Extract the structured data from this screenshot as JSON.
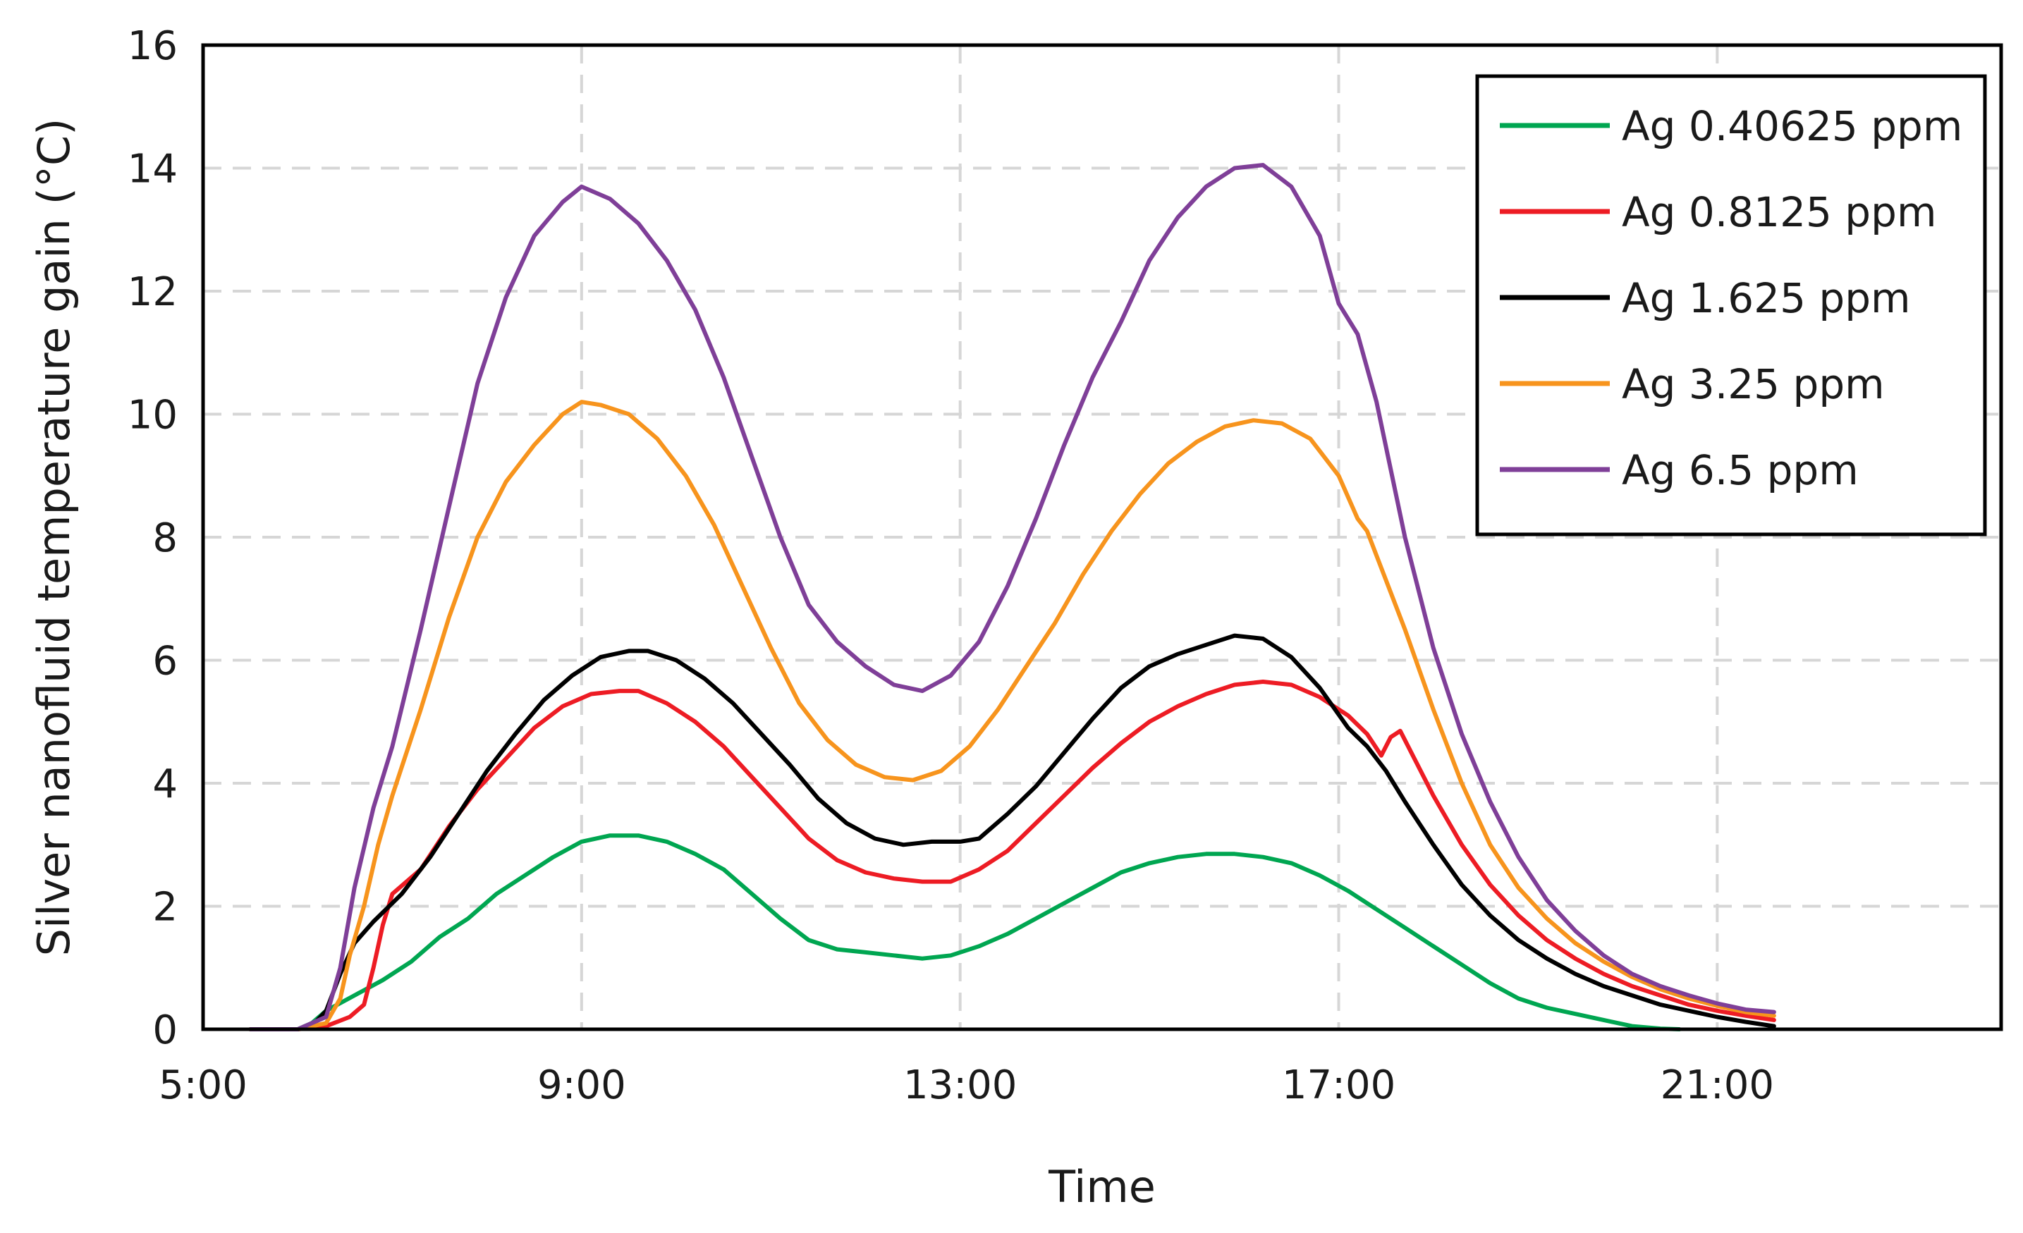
{
  "chart_data": {
    "type": "line",
    "title": "",
    "xlabel": "Time",
    "ylabel": "Silver nanofluid temperature gain (°C)",
    "xlim": [
      5,
      24
    ],
    "ylim": [
      0,
      16
    ],
    "x_ticks": [
      {
        "value": 5,
        "label": "5:00"
      },
      {
        "value": 9,
        "label": "9:00"
      },
      {
        "value": 13,
        "label": "13:00"
      },
      {
        "value": 17,
        "label": "17:00"
      },
      {
        "value": 21,
        "label": "21:00"
      }
    ],
    "x_grid": [
      9,
      13,
      17,
      21
    ],
    "y_ticks": [
      0,
      2,
      4,
      6,
      8,
      10,
      12,
      14,
      16
    ],
    "grid": true,
    "legend_position": "top-right",
    "series": [
      {
        "name": "Ag 0.40625 ppm",
        "color": "#00a651",
        "points": [
          [
            5.5,
            0
          ],
          [
            6.0,
            0
          ],
          [
            6.15,
            0.1
          ],
          [
            6.3,
            0.3
          ],
          [
            6.6,
            0.55
          ],
          [
            6.9,
            0.8
          ],
          [
            7.2,
            1.1
          ],
          [
            7.5,
            1.5
          ],
          [
            7.8,
            1.8
          ],
          [
            8.1,
            2.2
          ],
          [
            8.4,
            2.5
          ],
          [
            8.7,
            2.8
          ],
          [
            9.0,
            3.05
          ],
          [
            9.3,
            3.15
          ],
          [
            9.6,
            3.15
          ],
          [
            9.9,
            3.05
          ],
          [
            10.2,
            2.85
          ],
          [
            10.5,
            2.6
          ],
          [
            10.8,
            2.2
          ],
          [
            11.1,
            1.8
          ],
          [
            11.4,
            1.45
          ],
          [
            11.7,
            1.3
          ],
          [
            12.0,
            1.25
          ],
          [
            12.3,
            1.2
          ],
          [
            12.6,
            1.15
          ],
          [
            12.9,
            1.2
          ],
          [
            13.2,
            1.35
          ],
          [
            13.5,
            1.55
          ],
          [
            13.8,
            1.8
          ],
          [
            14.1,
            2.05
          ],
          [
            14.4,
            2.3
          ],
          [
            14.7,
            2.55
          ],
          [
            15.0,
            2.7
          ],
          [
            15.3,
            2.8
          ],
          [
            15.6,
            2.85
          ],
          [
            15.9,
            2.85
          ],
          [
            16.2,
            2.8
          ],
          [
            16.5,
            2.7
          ],
          [
            16.8,
            2.5
          ],
          [
            17.1,
            2.25
          ],
          [
            17.4,
            1.95
          ],
          [
            17.7,
            1.65
          ],
          [
            18.0,
            1.35
          ],
          [
            18.3,
            1.05
          ],
          [
            18.6,
            0.75
          ],
          [
            18.9,
            0.5
          ],
          [
            19.2,
            0.35
          ],
          [
            19.5,
            0.25
          ],
          [
            19.8,
            0.15
          ],
          [
            20.1,
            0.05
          ],
          [
            20.4,
            0.01
          ],
          [
            20.6,
            0
          ]
        ]
      },
      {
        "name": "Ag 0.8125 ppm",
        "color": "#ed1c24",
        "points": [
          [
            5.5,
            0
          ],
          [
            6.0,
            0
          ],
          [
            6.3,
            0.05
          ],
          [
            6.55,
            0.2
          ],
          [
            6.7,
            0.4
          ],
          [
            6.8,
            1.0
          ],
          [
            6.9,
            1.7
          ],
          [
            7.0,
            2.2
          ],
          [
            7.3,
            2.6
          ],
          [
            7.6,
            3.3
          ],
          [
            7.9,
            3.9
          ],
          [
            8.2,
            4.4
          ],
          [
            8.5,
            4.9
          ],
          [
            8.8,
            5.25
          ],
          [
            9.1,
            5.45
          ],
          [
            9.4,
            5.5
          ],
          [
            9.6,
            5.5
          ],
          [
            9.9,
            5.3
          ],
          [
            10.2,
            5.0
          ],
          [
            10.5,
            4.6
          ],
          [
            10.8,
            4.1
          ],
          [
            11.1,
            3.6
          ],
          [
            11.4,
            3.1
          ],
          [
            11.7,
            2.75
          ],
          [
            12.0,
            2.55
          ],
          [
            12.3,
            2.45
          ],
          [
            12.6,
            2.4
          ],
          [
            12.9,
            2.4
          ],
          [
            13.2,
            2.6
          ],
          [
            13.5,
            2.9
          ],
          [
            13.8,
            3.35
          ],
          [
            14.1,
            3.8
          ],
          [
            14.4,
            4.25
          ],
          [
            14.7,
            4.65
          ],
          [
            15.0,
            5.0
          ],
          [
            15.3,
            5.25
          ],
          [
            15.6,
            5.45
          ],
          [
            15.9,
            5.6
          ],
          [
            16.2,
            5.65
          ],
          [
            16.5,
            5.6
          ],
          [
            16.8,
            5.4
          ],
          [
            17.1,
            5.1
          ],
          [
            17.3,
            4.8
          ],
          [
            17.45,
            4.45
          ],
          [
            17.55,
            4.75
          ],
          [
            17.65,
            4.85
          ],
          [
            17.8,
            4.4
          ],
          [
            18.0,
            3.8
          ],
          [
            18.3,
            3.0
          ],
          [
            18.6,
            2.35
          ],
          [
            18.9,
            1.85
          ],
          [
            19.2,
            1.45
          ],
          [
            19.5,
            1.15
          ],
          [
            19.8,
            0.9
          ],
          [
            20.1,
            0.7
          ],
          [
            20.4,
            0.55
          ],
          [
            20.7,
            0.4
          ],
          [
            21.0,
            0.3
          ],
          [
            21.3,
            0.22
          ],
          [
            21.6,
            0.15
          ]
        ]
      },
      {
        "name": "Ag 1.625 ppm",
        "color": "#000000",
        "points": [
          [
            5.5,
            0
          ],
          [
            6.0,
            0
          ],
          [
            6.15,
            0.05
          ],
          [
            6.3,
            0.3
          ],
          [
            6.45,
            0.9
          ],
          [
            6.6,
            1.4
          ],
          [
            6.8,
            1.75
          ],
          [
            7.1,
            2.2
          ],
          [
            7.4,
            2.8
          ],
          [
            7.7,
            3.5
          ],
          [
            8.0,
            4.2
          ],
          [
            8.3,
            4.8
          ],
          [
            8.6,
            5.35
          ],
          [
            8.9,
            5.75
          ],
          [
            9.2,
            6.05
          ],
          [
            9.5,
            6.15
          ],
          [
            9.7,
            6.15
          ],
          [
            10.0,
            6.0
          ],
          [
            10.3,
            5.7
          ],
          [
            10.6,
            5.3
          ],
          [
            10.9,
            4.8
          ],
          [
            11.2,
            4.3
          ],
          [
            11.5,
            3.75
          ],
          [
            11.8,
            3.35
          ],
          [
            12.1,
            3.1
          ],
          [
            12.4,
            3.0
          ],
          [
            12.7,
            3.05
          ],
          [
            13.0,
            3.05
          ],
          [
            13.2,
            3.1
          ],
          [
            13.5,
            3.5
          ],
          [
            13.8,
            3.95
          ],
          [
            14.1,
            4.5
          ],
          [
            14.4,
            5.05
          ],
          [
            14.7,
            5.55
          ],
          [
            15.0,
            5.9
          ],
          [
            15.3,
            6.1
          ],
          [
            15.6,
            6.25
          ],
          [
            15.9,
            6.4
          ],
          [
            16.2,
            6.35
          ],
          [
            16.5,
            6.05
          ],
          [
            16.8,
            5.55
          ],
          [
            17.1,
            4.9
          ],
          [
            17.3,
            4.6
          ],
          [
            17.5,
            4.2
          ],
          [
            17.7,
            3.7
          ],
          [
            18.0,
            3.0
          ],
          [
            18.3,
            2.35
          ],
          [
            18.6,
            1.85
          ],
          [
            18.9,
            1.45
          ],
          [
            19.2,
            1.15
          ],
          [
            19.5,
            0.9
          ],
          [
            19.8,
            0.7
          ],
          [
            20.1,
            0.55
          ],
          [
            20.4,
            0.4
          ],
          [
            20.7,
            0.3
          ],
          [
            21.0,
            0.2
          ],
          [
            21.3,
            0.12
          ],
          [
            21.6,
            0.05
          ]
        ]
      },
      {
        "name": "Ag 3.25 ppm",
        "color": "#f7941d",
        "points": [
          [
            5.5,
            0
          ],
          [
            6.0,
            0
          ],
          [
            6.3,
            0.1
          ],
          [
            6.45,
            0.5
          ],
          [
            6.55,
            1.2
          ],
          [
            6.7,
            2.0
          ],
          [
            6.85,
            3.0
          ],
          [
            7.0,
            3.8
          ],
          [
            7.3,
            5.2
          ],
          [
            7.6,
            6.7
          ],
          [
            7.9,
            8.0
          ],
          [
            8.2,
            8.9
          ],
          [
            8.5,
            9.5
          ],
          [
            8.8,
            10.0
          ],
          [
            9.0,
            10.2
          ],
          [
            9.2,
            10.15
          ],
          [
            9.5,
            10.0
          ],
          [
            9.8,
            9.6
          ],
          [
            10.1,
            9.0
          ],
          [
            10.4,
            8.2
          ],
          [
            10.7,
            7.2
          ],
          [
            11.0,
            6.2
          ],
          [
            11.3,
            5.3
          ],
          [
            11.6,
            4.7
          ],
          [
            11.9,
            4.3
          ],
          [
            12.2,
            4.1
          ],
          [
            12.5,
            4.05
          ],
          [
            12.8,
            4.2
          ],
          [
            13.1,
            4.6
          ],
          [
            13.4,
            5.2
          ],
          [
            13.7,
            5.9
          ],
          [
            14.0,
            6.6
          ],
          [
            14.3,
            7.4
          ],
          [
            14.6,
            8.1
          ],
          [
            14.9,
            8.7
          ],
          [
            15.2,
            9.2
          ],
          [
            15.5,
            9.55
          ],
          [
            15.8,
            9.8
          ],
          [
            16.1,
            9.9
          ],
          [
            16.4,
            9.85
          ],
          [
            16.7,
            9.6
          ],
          [
            17.0,
            9.0
          ],
          [
            17.2,
            8.3
          ],
          [
            17.3,
            8.1
          ],
          [
            17.45,
            7.5
          ],
          [
            17.7,
            6.5
          ],
          [
            18.0,
            5.2
          ],
          [
            18.3,
            4.0
          ],
          [
            18.6,
            3.0
          ],
          [
            18.9,
            2.3
          ],
          [
            19.2,
            1.8
          ],
          [
            19.5,
            1.4
          ],
          [
            19.8,
            1.1
          ],
          [
            20.1,
            0.85
          ],
          [
            20.4,
            0.65
          ],
          [
            20.7,
            0.5
          ],
          [
            21.0,
            0.38
          ],
          [
            21.3,
            0.28
          ],
          [
            21.6,
            0.22
          ]
        ]
      },
      {
        "name": "Ag 6.5 ppm",
        "color": "#7f3f98",
        "points": [
          [
            5.5,
            0
          ],
          [
            6.0,
            0
          ],
          [
            6.3,
            0.2
          ],
          [
            6.45,
            1.0
          ],
          [
            6.6,
            2.3
          ],
          [
            6.8,
            3.6
          ],
          [
            7.0,
            4.6
          ],
          [
            7.3,
            6.5
          ],
          [
            7.6,
            8.5
          ],
          [
            7.9,
            10.5
          ],
          [
            8.2,
            11.9
          ],
          [
            8.5,
            12.9
          ],
          [
            8.8,
            13.45
          ],
          [
            9.0,
            13.7
          ],
          [
            9.3,
            13.5
          ],
          [
            9.6,
            13.1
          ],
          [
            9.9,
            12.5
          ],
          [
            10.2,
            11.7
          ],
          [
            10.5,
            10.6
          ],
          [
            10.8,
            9.3
          ],
          [
            11.1,
            8.0
          ],
          [
            11.4,
            6.9
          ],
          [
            11.7,
            6.3
          ],
          [
            12.0,
            5.9
          ],
          [
            12.3,
            5.6
          ],
          [
            12.6,
            5.5
          ],
          [
            12.9,
            5.75
          ],
          [
            13.2,
            6.3
          ],
          [
            13.5,
            7.2
          ],
          [
            13.8,
            8.3
          ],
          [
            14.1,
            9.5
          ],
          [
            14.4,
            10.6
          ],
          [
            14.7,
            11.5
          ],
          [
            15.0,
            12.5
          ],
          [
            15.3,
            13.2
          ],
          [
            15.6,
            13.7
          ],
          [
            15.9,
            14.0
          ],
          [
            16.2,
            14.05
          ],
          [
            16.5,
            13.7
          ],
          [
            16.8,
            12.9
          ],
          [
            17.0,
            11.8
          ],
          [
            17.2,
            11.3
          ],
          [
            17.4,
            10.2
          ],
          [
            17.7,
            8.0
          ],
          [
            18.0,
            6.2
          ],
          [
            18.3,
            4.8
          ],
          [
            18.6,
            3.7
          ],
          [
            18.9,
            2.8
          ],
          [
            19.2,
            2.1
          ],
          [
            19.5,
            1.6
          ],
          [
            19.8,
            1.2
          ],
          [
            20.1,
            0.9
          ],
          [
            20.4,
            0.7
          ],
          [
            20.7,
            0.55
          ],
          [
            21.0,
            0.42
          ],
          [
            21.3,
            0.32
          ],
          [
            21.6,
            0.28
          ]
        ]
      }
    ]
  }
}
